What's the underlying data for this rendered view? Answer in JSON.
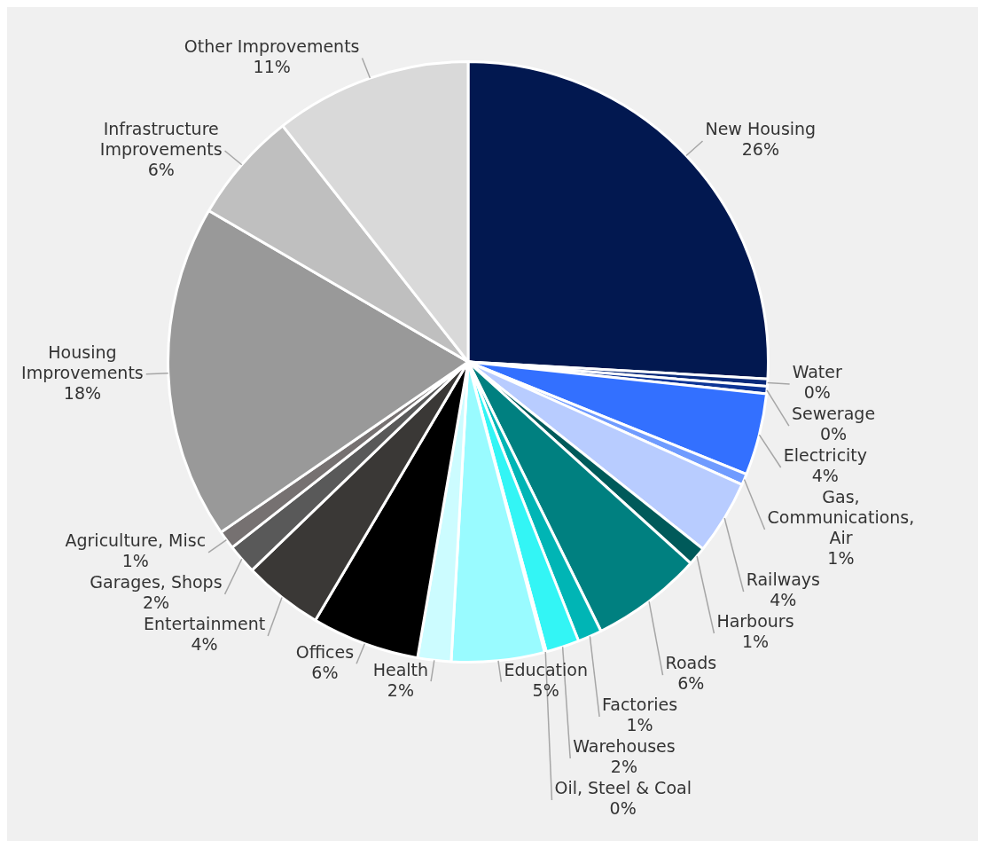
{
  "chart_data": {
    "type": "pie",
    "legend": false,
    "categories": [
      "New Housing",
      "Water",
      "Sewerage",
      "Electricity",
      "Gas, Communications, Air",
      "Railways",
      "Harbours",
      "Roads",
      "Factories",
      "Warehouses",
      "Oil, Steel & Coal",
      "Education",
      "Health",
      "Offices",
      "Entertainment",
      "Garages, Shops",
      "Agriculture, Misc",
      "Housing Improvements",
      "Infrastructure Improvements",
      "Other Improvements"
    ],
    "values": [
      25.9,
      0.4,
      0.4,
      4.4,
      0.6,
      4.0,
      1.0,
      6.0,
      1.3,
      1.8,
      0.1,
      5.0,
      1.8,
      5.8,
      4.3,
      1.6,
      1.0,
      18.0,
      6.0,
      10.6
    ],
    "value_labels": [
      "26%",
      "0%",
      "0%",
      "4%",
      "1%",
      "4%",
      "1%",
      "6%",
      "1%",
      "2%",
      "0%",
      "5%",
      "2%",
      "6%",
      "4%",
      "2%",
      "1%",
      "18%",
      "6%",
      "11%"
    ],
    "colors": [
      "#021850",
      "#0a2a7a",
      "#0d3596",
      "#3370ff",
      "#6f9bff",
      "#b8ccff",
      "#005a5a",
      "#008080",
      "#00b5b5",
      "#33f5f5",
      "#66ffff",
      "#99fbff",
      "#ccfcff",
      "#000000",
      "#3a3836",
      "#595959",
      "#767171",
      "#999999",
      "#bfbfbf",
      "#d9d9d9"
    ]
  }
}
